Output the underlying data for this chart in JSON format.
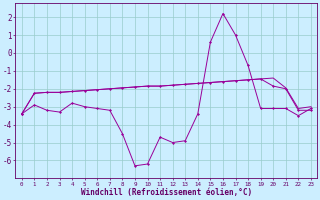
{
  "x": [
    0,
    1,
    2,
    3,
    4,
    5,
    6,
    7,
    8,
    9,
    10,
    11,
    12,
    13,
    14,
    15,
    16,
    17,
    18,
    19,
    20,
    21,
    22,
    23
  ],
  "windchill": [
    -3.4,
    -2.9,
    -3.2,
    -3.3,
    -2.8,
    -3.0,
    -3.1,
    -3.2,
    -4.5,
    -6.3,
    -6.2,
    -4.7,
    -5.0,
    -4.9,
    -3.4,
    0.6,
    2.2,
    1.0,
    -0.7,
    -3.1,
    -3.1,
    -3.1,
    -3.5,
    -3.1
  ],
  "line2": [
    -3.4,
    -2.25,
    -2.2,
    -2.2,
    -2.15,
    -2.1,
    -2.05,
    -2.0,
    -1.95,
    -1.9,
    -1.85,
    -1.85,
    -1.8,
    -1.75,
    -1.7,
    -1.65,
    -1.6,
    -1.55,
    -1.5,
    -1.45,
    -1.85,
    -2.0,
    -3.2,
    -3.2
  ],
  "line3": [
    -3.4,
    -2.25,
    -2.2,
    -2.2,
    -2.15,
    -2.1,
    -2.05,
    -2.0,
    -1.95,
    -1.9,
    -1.85,
    -1.85,
    -1.8,
    -1.75,
    -1.7,
    -1.65,
    -1.6,
    -1.55,
    -1.5,
    -1.45,
    -1.4,
    -1.95,
    -3.1,
    -3.0
  ],
  "background_color": "#cceeff",
  "grid_color": "#99cccc",
  "line_color": "#990099",
  "ylabel_values": [
    2,
    1,
    0,
    -1,
    -2,
    -3,
    -4,
    -5,
    -6
  ],
  "ylim": [
    -7.0,
    2.8
  ],
  "xlabel": "Windchill (Refroidissement éolien,°C)",
  "title_color": "#660066"
}
